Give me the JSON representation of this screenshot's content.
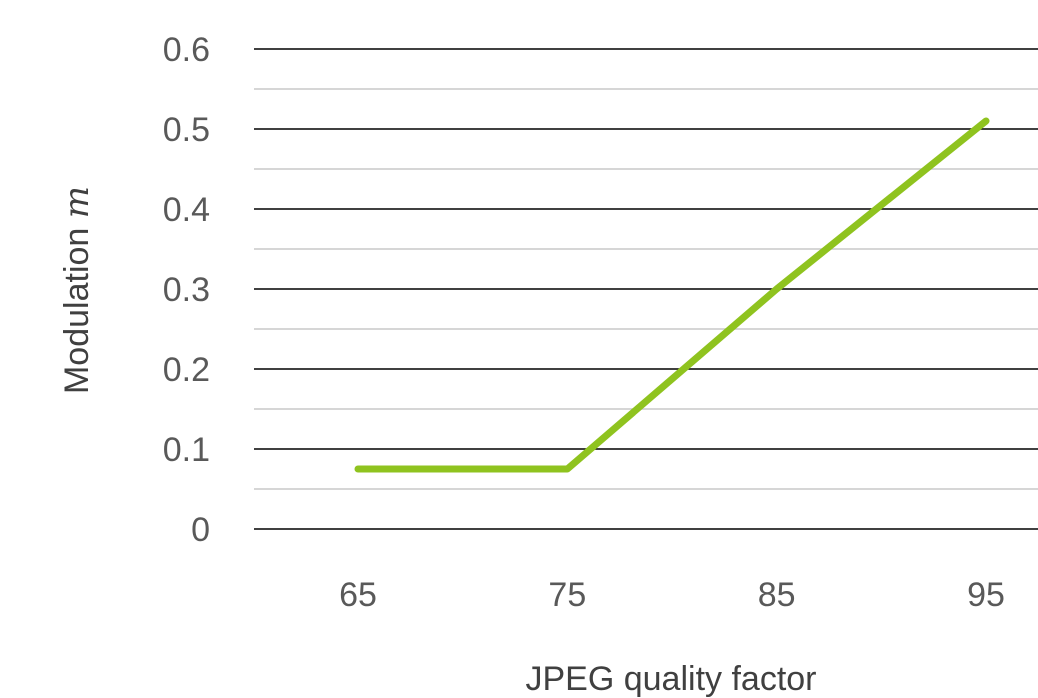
{
  "chart_data": {
    "type": "line",
    "title": "",
    "xlabel": "JPEG quality factor",
    "ylabel_text": "Modulation",
    "ylabel_variable": "m",
    "categories": [
      "65",
      "75",
      "85",
      "95"
    ],
    "ylim": [
      0,
      0.6
    ],
    "yticks": [
      "0",
      "0.1",
      "0.2",
      "0.3",
      "0.4",
      "0.5",
      "0.6"
    ],
    "grid": true,
    "legend": "none",
    "series": [
      {
        "color": "#8fc31f",
        "values": [
          0.075,
          0.075,
          0.3,
          0.51
        ]
      }
    ]
  }
}
